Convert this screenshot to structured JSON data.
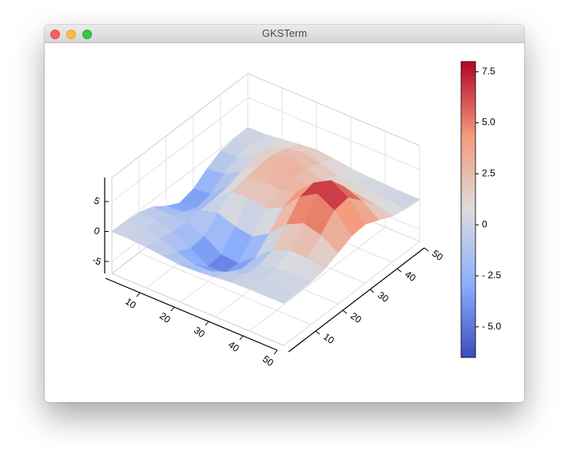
{
  "window": {
    "title": "GKSTerm"
  },
  "chart_data": {
    "type": "surface",
    "x": [
      0,
      5,
      10,
      15,
      20,
      25,
      30,
      35,
      40,
      45,
      50
    ],
    "y": [
      0,
      5,
      10,
      15,
      20,
      25,
      30,
      35,
      40,
      45,
      50
    ],
    "z": [
      [
        0,
        -0.1,
        -0.3,
        -1.1,
        -2.7,
        -3.9,
        -3.3,
        -1.7,
        -0.5,
        -0.1,
        0
      ],
      [
        0,
        -0.2,
        -0.5,
        -1.2,
        -2.5,
        -3.5,
        -3.0,
        -1.4,
        -0.2,
        0.1,
        0.1
      ],
      [
        -0.2,
        -0.6,
        -1.1,
        -1.2,
        -1.0,
        -0.9,
        -0.6,
        0.2,
        0.9,
        0.8,
        0.4
      ],
      [
        -0.5,
        -1.5,
        -2.7,
        -2.4,
        -0.3,
        1.5,
        2.0,
        2.3,
        2.4,
        1.8,
        0.8
      ],
      [
        -0.8,
        -2.5,
        -4.5,
        -4.3,
        -1.3,
        1.7,
        2.8,
        3.2,
        3.2,
        2.4,
        1.1
      ],
      [
        -0.7,
        -2.4,
        -4.4,
        -4.5,
        -1.8,
        1.1,
        2.4,
        2.7,
        2.6,
        1.8,
        0.8
      ],
      [
        -0.4,
        -1.3,
        -2.5,
        -2.3,
        -0.1,
        2.5,
        3.4,
        2.8,
        1.8,
        1.0,
        0.4
      ],
      [
        -0.1,
        -0.4,
        -0.7,
        0.1,
        2.6,
        5.5,
        6.1,
        4.0,
        1.7,
        0.6,
        0.2
      ],
      [
        0,
        -0.1,
        0.1,
        1.2,
        4.0,
        7.2,
        7.7,
        4.9,
        1.9,
        0.5,
        0.1
      ],
      [
        0,
        0,
        0.2,
        1.1,
        3.2,
        5.6,
        6.0,
        3.8,
        1.4,
        0.3,
        0
      ],
      [
        0,
        0,
        0.1,
        0.5,
        1.5,
        2.6,
        2.8,
        1.8,
        0.7,
        0.2,
        0
      ]
    ],
    "xlim": [
      0,
      50
    ],
    "ylim": [
      0,
      50
    ],
    "zlim": [
      -7,
      9
    ],
    "xticks": [
      10,
      20,
      30,
      40,
      50
    ],
    "yticks": [
      10,
      20,
      30,
      40,
      50
    ],
    "zticks": [
      -5,
      0,
      5
    ],
    "grid": true,
    "colormap": [
      "#3b4cc0",
      "#8db0fe",
      "#dddcdc",
      "#f49a7b",
      "#b40426"
    ],
    "colorbar": {
      "clim": [
        -6.5,
        8
      ],
      "ticks": [
        7.5,
        {
          "value": 5,
          "label": "5.0"
        },
        2.5,
        0,
        {
          "value": -2.5,
          "label": "- 2.5"
        },
        {
          "value": -5,
          "label": "- 5.0"
        }
      ]
    }
  }
}
